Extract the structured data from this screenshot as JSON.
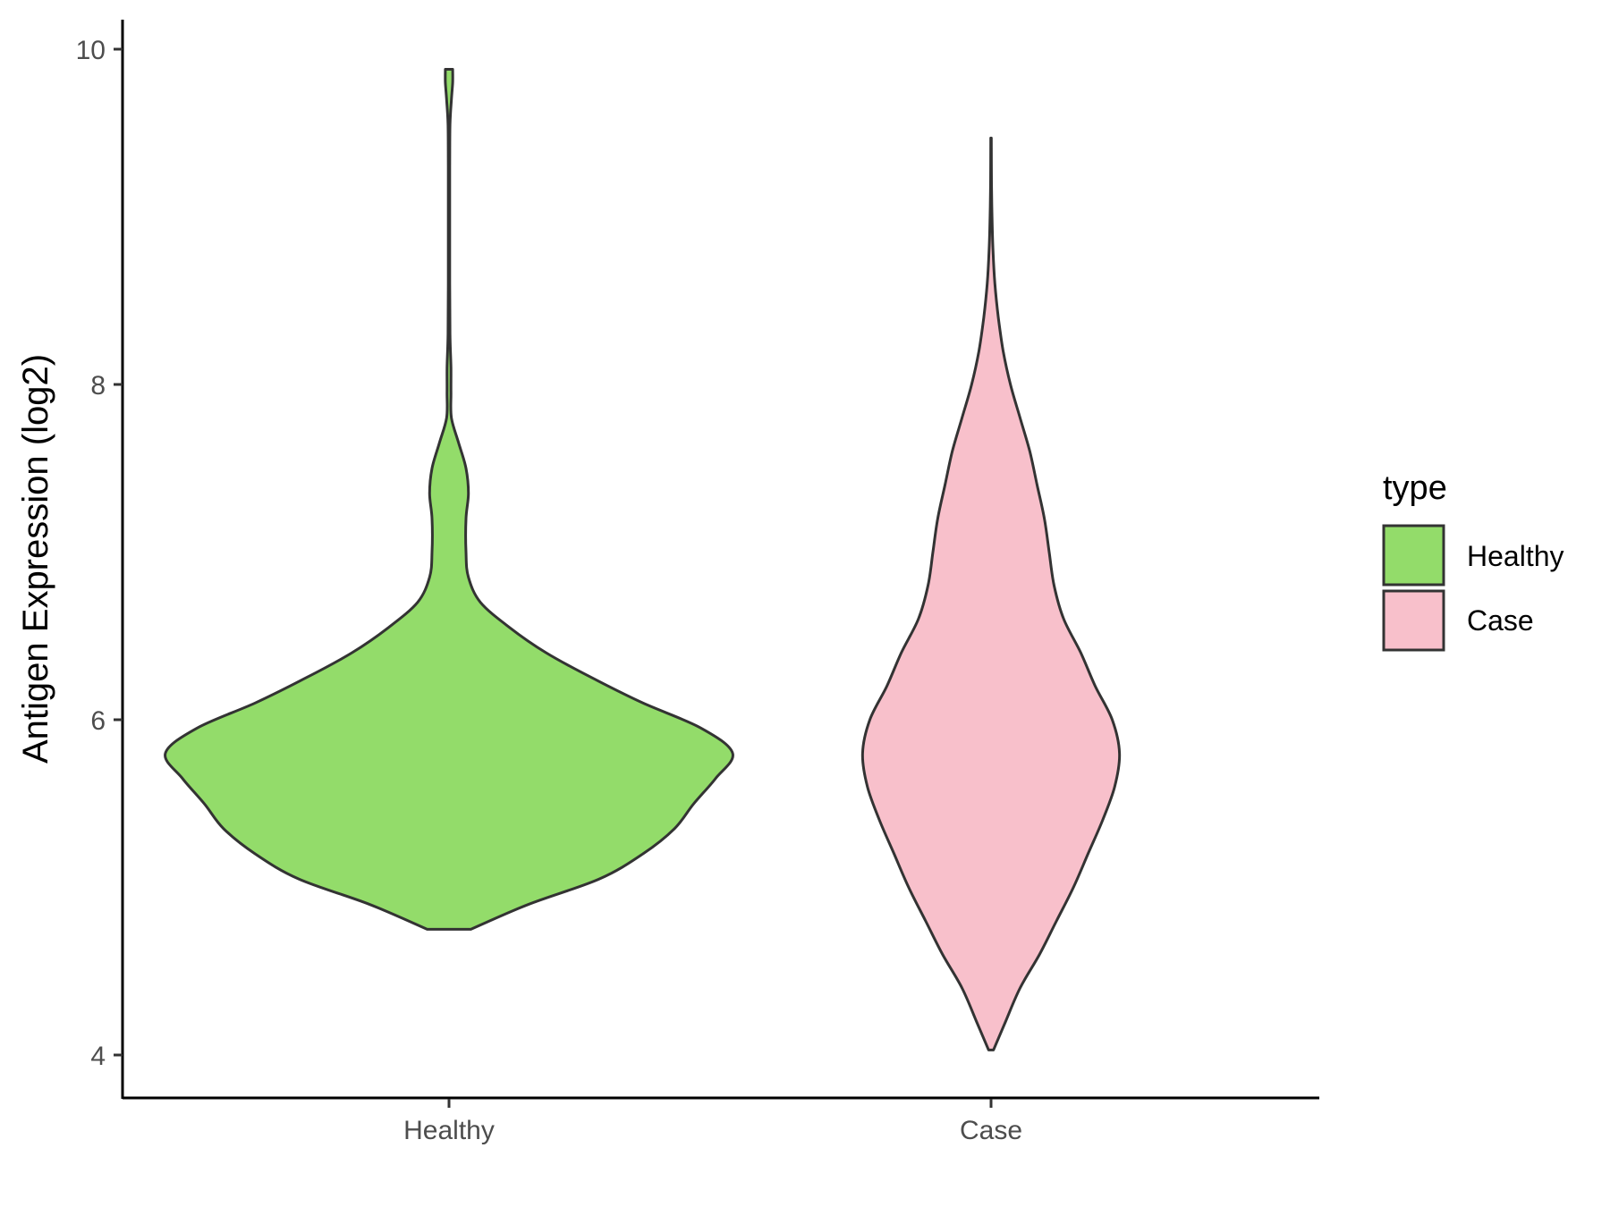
{
  "chart_data": {
    "type": "violin",
    "ylabel": "Antigen Expression (log2)",
    "xlabel": "",
    "categories": [
      "Healthy",
      "Case"
    ],
    "y_ticks": [
      "4",
      "6",
      "8",
      "10"
    ],
    "ylim": [
      3.75,
      10.15
    ],
    "grid": false,
    "legend": {
      "title": "type",
      "placement": "right",
      "entries": [
        {
          "label": "Healthy",
          "color": "#93dc6a"
        },
        {
          "label": "Case",
          "color": "#f8c0cb"
        }
      ]
    },
    "series": [
      {
        "category": "Healthy",
        "color": "#93dc6a",
        "min": 4.75,
        "max": 9.88,
        "density": [
          [
            4.75,
            0.09
          ],
          [
            4.9,
            0.33
          ],
          [
            5.05,
            0.62
          ],
          [
            5.2,
            0.8
          ],
          [
            5.35,
            0.93
          ],
          [
            5.5,
            1.01
          ],
          [
            5.65,
            1.1
          ],
          [
            5.8,
            1.17
          ],
          [
            5.95,
            1.04
          ],
          [
            6.1,
            0.8
          ],
          [
            6.25,
            0.59
          ],
          [
            6.4,
            0.4
          ],
          [
            6.55,
            0.25
          ],
          [
            6.7,
            0.13
          ],
          [
            6.85,
            0.08
          ],
          [
            7.0,
            0.07
          ],
          [
            7.2,
            0.07
          ],
          [
            7.35,
            0.08
          ],
          [
            7.5,
            0.07
          ],
          [
            7.65,
            0.04
          ],
          [
            7.8,
            0.01
          ],
          [
            7.95,
            0.008
          ],
          [
            8.1,
            0.008
          ],
          [
            8.3,
            0.004
          ],
          [
            8.6,
            0.003
          ],
          [
            9.0,
            0.003
          ],
          [
            9.3,
            0.003
          ],
          [
            9.55,
            0.004
          ],
          [
            9.7,
            0.01
          ],
          [
            9.8,
            0.015
          ],
          [
            9.88,
            0.015
          ]
        ]
      },
      {
        "category": "Case",
        "color": "#f8c0cb",
        "min": 4.03,
        "max": 9.47,
        "density": [
          [
            4.03,
            0.01
          ],
          [
            4.2,
            0.06
          ],
          [
            4.4,
            0.12
          ],
          [
            4.6,
            0.2
          ],
          [
            4.8,
            0.27
          ],
          [
            5.0,
            0.34
          ],
          [
            5.2,
            0.4
          ],
          [
            5.4,
            0.46
          ],
          [
            5.6,
            0.51
          ],
          [
            5.8,
            0.53
          ],
          [
            6.0,
            0.5
          ],
          [
            6.2,
            0.43
          ],
          [
            6.4,
            0.37
          ],
          [
            6.6,
            0.3
          ],
          [
            6.8,
            0.26
          ],
          [
            7.0,
            0.24
          ],
          [
            7.2,
            0.22
          ],
          [
            7.4,
            0.19
          ],
          [
            7.6,
            0.16
          ],
          [
            7.8,
            0.12
          ],
          [
            8.0,
            0.08
          ],
          [
            8.2,
            0.05
          ],
          [
            8.4,
            0.03
          ],
          [
            8.6,
            0.016
          ],
          [
            8.8,
            0.008
          ],
          [
            9.0,
            0.004
          ],
          [
            9.2,
            0.002
          ],
          [
            9.47,
            0.001
          ]
        ]
      }
    ]
  }
}
